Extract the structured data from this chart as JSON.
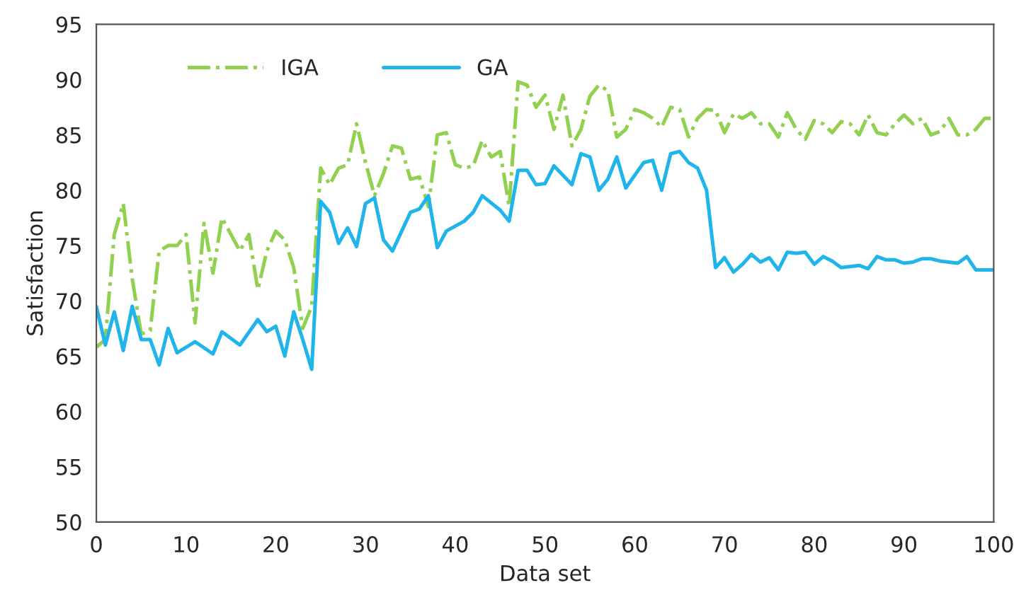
{
  "chart_data": {
    "type": "line",
    "xlabel": "Data set",
    "ylabel": "Satisfaction",
    "xlim": [
      0,
      100
    ],
    "xticks": [
      0,
      10,
      20,
      30,
      40,
      50,
      60,
      70,
      80,
      90,
      100
    ],
    "ylim": [
      50,
      95
    ],
    "yticks": [
      50,
      55,
      60,
      65,
      70,
      75,
      80,
      85,
      90,
      95
    ],
    "grid": false,
    "legend": "top left",
    "marker": "none",
    "series": [
      {
        "name": "IGA",
        "color": "#92d050",
        "line_style": "dashdot",
        "x": [
          0,
          1,
          2,
          3,
          4,
          5,
          6,
          7,
          8,
          9,
          10,
          11,
          12,
          13,
          14,
          15,
          16,
          17,
          18,
          19,
          20,
          21,
          22,
          23,
          24,
          25,
          26,
          27,
          28,
          29,
          30,
          31,
          32,
          33,
          34,
          35,
          36,
          37,
          38,
          39,
          40,
          41,
          42,
          43,
          44,
          45,
          46,
          47,
          48,
          49,
          50,
          51,
          52,
          53,
          54,
          55,
          56,
          57,
          58,
          59,
          60,
          61,
          62,
          63,
          64,
          65,
          66,
          67,
          68,
          69,
          70,
          71,
          72,
          73,
          74,
          75,
          76,
          77,
          78,
          79,
          80,
          81,
          82,
          83,
          84,
          85,
          86,
          87,
          88,
          89,
          90,
          91,
          92,
          93,
          94,
          95,
          96,
          97,
          98,
          99,
          100
        ],
        "values": [
          65.8,
          66.5,
          76,
          78.8,
          72,
          67,
          67.3,
          74.5,
          75,
          75,
          76,
          68,
          77,
          72.5,
          77.5,
          76,
          74.5,
          76,
          71,
          74.5,
          76.3,
          75.5,
          73,
          67.5,
          69.5,
          82,
          80.5,
          82,
          82.3,
          86,
          82.5,
          79.5,
          81.5,
          84,
          83.8,
          81,
          81.2,
          78.5,
          85,
          85.2,
          82.3,
          82,
          82.2,
          84.5,
          83,
          83.5,
          78.5,
          89.8,
          89.5,
          87.5,
          88.6,
          85.5,
          88.6,
          84,
          85.5,
          88.5,
          89.5,
          89,
          84.8,
          85.5,
          87.3,
          87,
          86.5,
          85.7,
          87.5,
          87.3,
          84.8,
          86.5,
          87.3,
          87.2,
          85.2,
          86.9,
          86.5,
          87,
          86,
          86,
          84.8,
          87,
          85.5,
          84.6,
          86.3,
          86,
          85.2,
          86.2,
          86,
          85,
          86.8,
          85.2,
          85,
          86,
          86.8,
          86,
          86.5,
          85,
          85.3,
          86.5,
          85,
          85,
          85.5,
          86.5,
          86.5
        ]
      },
      {
        "name": "GA",
        "color": "#1fb5ea",
        "line_style": "solid",
        "x": [
          0,
          1,
          2,
          3,
          4,
          5,
          6,
          7,
          8,
          9,
          11,
          13,
          14,
          16,
          18,
          19,
          20,
          21,
          22,
          23,
          24,
          25,
          26,
          27,
          28,
          29,
          30,
          31,
          32,
          33,
          35,
          36,
          37,
          38,
          39,
          41,
          42,
          43,
          45,
          46,
          47,
          48,
          49,
          50,
          51,
          53,
          54,
          55,
          56,
          57,
          58,
          59,
          61,
          62,
          63,
          64,
          65,
          66,
          67,
          68,
          69,
          70,
          71,
          72,
          73,
          74,
          75,
          76,
          77,
          78,
          79,
          80,
          81,
          82,
          83,
          84,
          85,
          86,
          87,
          88,
          89,
          90,
          91,
          92,
          93,
          94,
          95,
          96,
          97,
          98,
          100
        ],
        "values": [
          69.5,
          66,
          69,
          65.5,
          69.5,
          66.5,
          66.5,
          64.2,
          67.5,
          65.3,
          66.3,
          65.2,
          67.2,
          66,
          68.3,
          67.2,
          67.7,
          65,
          69,
          66.5,
          63.8,
          79,
          78,
          75.2,
          76.6,
          74.9,
          78.8,
          79.3,
          75.5,
          74.5,
          78,
          78.3,
          79.5,
          74.8,
          76.3,
          77.2,
          78,
          79.5,
          78.2,
          77.2,
          81.8,
          81.8,
          80.5,
          80.6,
          82.2,
          80.5,
          83.3,
          83,
          80,
          81,
          83,
          80.2,
          82.5,
          82.7,
          80,
          83.3,
          83.5,
          82.5,
          82,
          80,
          73,
          73.9,
          72.6,
          73.3,
          74.2,
          73.5,
          73.9,
          72.8,
          74.4,
          74.3,
          74.4,
          73.3,
          74,
          73.6,
          73,
          73.1,
          73.2,
          72.9,
          74,
          73.7,
          73.7,
          73.4,
          73.5,
          73.8,
          73.8,
          73.6,
          73.5,
          73.4,
          74,
          72.8,
          72.8
        ]
      }
    ]
  }
}
